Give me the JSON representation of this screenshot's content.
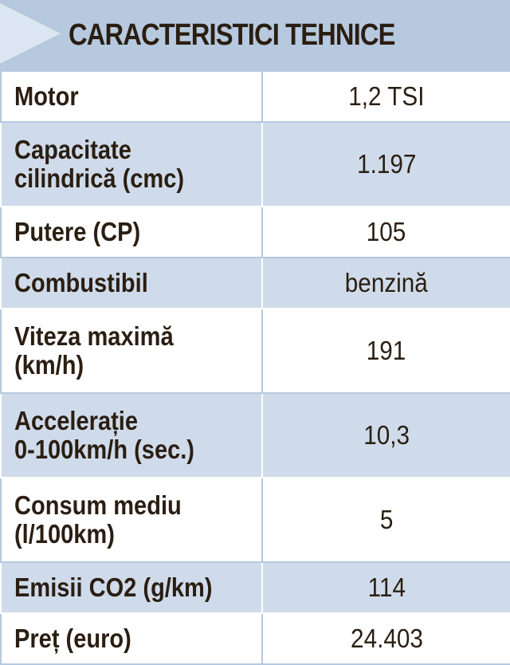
{
  "title": "CARACTERISTICI TEHNICE",
  "rows": [
    {
      "label": "Motor",
      "value": "1,2 TSI"
    },
    {
      "label": "Capacitate\ncilindrică (cmc)",
      "value": "1.197"
    },
    {
      "label": "Putere (CP)",
      "value": "105"
    },
    {
      "label": "Combustibil",
      "value": "benzină"
    },
    {
      "label": "Viteza maximă\n(km/h)",
      "value": "191"
    },
    {
      "label": "Accelerație\n0-100km/h (sec.)",
      "value": "10,3"
    },
    {
      "label": "Consum mediu\n(l/100km)",
      "value": "5"
    },
    {
      "label": "Emisii CO2 (g/km)",
      "value": "114"
    },
    {
      "label": "Preț (euro)",
      "value": "24.403"
    }
  ]
}
